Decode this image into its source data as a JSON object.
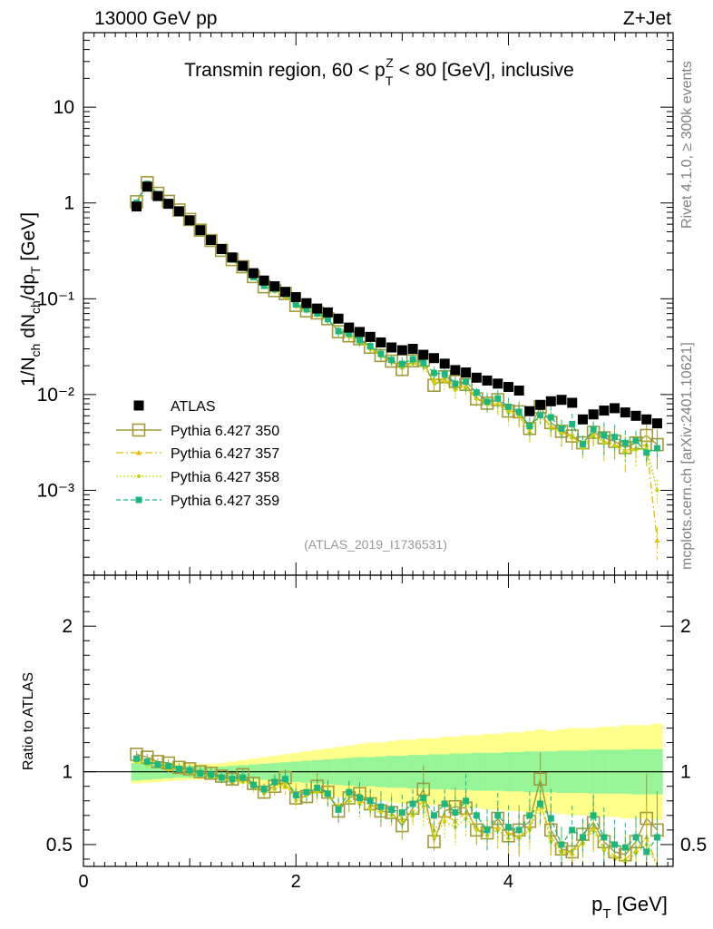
{
  "header": {
    "energy_label": "13000 GeV pp",
    "process_label": "Z+Jet"
  },
  "side": {
    "rivet_label": "Rivet 4.1.0, ≥ 300k events",
    "mcplots_label": "mcplots.cern.ch [arXiv:2401.10621]"
  },
  "chart_data": {
    "type": "scatter",
    "title": "Transmin region, 60 < pTZ < 80 [GeV], inclusive",
    "analysis_tag": "(ATLAS_2019_I1736531)",
    "xlabel": "pT [GeV]",
    "ylabel_main": "1/Nch dNch/dpT [GeV]",
    "ylabel_ratio": "Ratio to ATLAS",
    "xlim": [
      0,
      5.55
    ],
    "ylim_main": [
      0.00013,
      60
    ],
    "ylim_ratio": [
      0.35,
      2.35
    ],
    "yscale_main": "log",
    "x_ticks": [
      0,
      2,
      4
    ],
    "y_ticks_main": [
      {
        "value": 10,
        "label": "10"
      },
      {
        "value": 1,
        "label": "1"
      },
      {
        "value": 0.1,
        "label": "10⁻¹"
      },
      {
        "value": 0.01,
        "label": "10⁻²"
      },
      {
        "value": 0.001,
        "label": "10⁻³"
      }
    ],
    "y_ticks_ratio": [
      0.5,
      1,
      2
    ],
    "legend_position": "bottom-left",
    "x": [
      0.5,
      0.6,
      0.7,
      0.8,
      0.9,
      1.0,
      1.1,
      1.2,
      1.3,
      1.4,
      1.5,
      1.6,
      1.7,
      1.8,
      1.9,
      2.0,
      2.1,
      2.2,
      2.3,
      2.4,
      2.5,
      2.6,
      2.7,
      2.8,
      2.9,
      3.0,
      3.1,
      3.2,
      3.3,
      3.4,
      3.5,
      3.6,
      3.7,
      3.8,
      3.9,
      4.0,
      4.1,
      4.2,
      4.3,
      4.4,
      4.5,
      4.6,
      4.7,
      4.8,
      4.9,
      5.0,
      5.1,
      5.2,
      5.3,
      5.4
    ],
    "band_inner_halfwidth": [
      0.06,
      0.055,
      0.05,
      0.045,
      0.04,
      0.04,
      0.035,
      0.035,
      0.035,
      0.04,
      0.045,
      0.05,
      0.055,
      0.06,
      0.065,
      0.07,
      0.075,
      0.08,
      0.085,
      0.09,
      0.095,
      0.1,
      0.1,
      0.105,
      0.11,
      0.11,
      0.115,
      0.115,
      0.12,
      0.12,
      0.125,
      0.125,
      0.13,
      0.13,
      0.13,
      0.135,
      0.135,
      0.14,
      0.14,
      0.14,
      0.145,
      0.145,
      0.145,
      0.15,
      0.15,
      0.15,
      0.15,
      0.155,
      0.155,
      0.155
    ],
    "band_outer_halfwidth": [
      0.08,
      0.075,
      0.07,
      0.065,
      0.06,
      0.055,
      0.055,
      0.055,
      0.06,
      0.07,
      0.08,
      0.09,
      0.1,
      0.11,
      0.12,
      0.13,
      0.14,
      0.15,
      0.16,
      0.17,
      0.18,
      0.19,
      0.2,
      0.2,
      0.21,
      0.22,
      0.22,
      0.23,
      0.23,
      0.24,
      0.24,
      0.25,
      0.25,
      0.26,
      0.26,
      0.27,
      0.27,
      0.28,
      0.29,
      0.28,
      0.29,
      0.3,
      0.3,
      0.3,
      0.31,
      0.31,
      0.32,
      0.32,
      0.32,
      0.33
    ],
    "series": [
      {
        "name": "ATLAS",
        "color": "#000000",
        "style": "data",
        "values": [
          0.92,
          1.48,
          1.18,
          0.98,
          0.82,
          0.66,
          0.52,
          0.41,
          0.33,
          0.27,
          0.22,
          0.185,
          0.155,
          0.135,
          0.118,
          0.104,
          0.09,
          0.079,
          0.072,
          0.062,
          0.05,
          0.045,
          0.04,
          0.035,
          0.031,
          0.029,
          0.03,
          0.026,
          0.024,
          0.021,
          0.018,
          0.017,
          0.015,
          0.014,
          0.013,
          0.012,
          0.011,
          0.0067,
          0.0078,
          0.0085,
          0.0088,
          0.0082,
          0.0055,
          0.0062,
          0.0068,
          0.0072,
          0.0065,
          0.006,
          0.0055,
          0.005
        ]
      },
      {
        "name": "Pythia 6.427 350",
        "color": "#a29a3a",
        "style": "solid-open-square",
        "ratios": [
          1.12,
          1.1,
          1.07,
          1.06,
          1.03,
          1.02,
          1.0,
          0.99,
          0.97,
          0.95,
          0.98,
          0.92,
          0.86,
          0.9,
          0.96,
          0.82,
          0.83,
          0.9,
          0.86,
          0.73,
          0.82,
          0.85,
          0.78,
          0.73,
          0.72,
          0.63,
          0.75,
          0.88,
          0.52,
          0.73,
          0.76,
          0.75,
          0.6,
          0.58,
          0.68,
          0.56,
          0.6,
          0.66,
          0.95,
          0.6,
          0.47,
          0.45,
          0.57,
          0.65,
          0.52,
          0.45,
          0.43,
          0.52,
          0.68,
          0.6
        ]
      },
      {
        "name": "Pythia 6.427 357",
        "color": "#e0c000",
        "style": "dashdot-tri",
        "ratios": [
          1.08,
          1.08,
          1.06,
          1.02,
          1.02,
          1.0,
          0.99,
          0.97,
          0.96,
          0.93,
          0.95,
          0.9,
          0.88,
          0.92,
          0.9,
          0.85,
          0.86,
          0.88,
          0.84,
          0.76,
          0.85,
          0.8,
          0.77,
          0.75,
          0.74,
          0.68,
          0.72,
          0.8,
          0.6,
          0.7,
          0.66,
          0.72,
          0.62,
          0.6,
          0.62,
          0.58,
          0.55,
          0.62,
          0.8,
          0.55,
          0.46,
          0.44,
          0.52,
          0.62,
          0.48,
          0.42,
          0.4,
          0.46,
          0.55,
          0.06
        ]
      },
      {
        "name": "Pythia 6.427 358",
        "color": "#c8d400",
        "style": "dotted-dot",
        "ratios": [
          1.07,
          1.05,
          1.04,
          1.03,
          1.01,
          0.99,
          0.98,
          0.97,
          0.95,
          0.94,
          0.93,
          0.9,
          0.85,
          0.88,
          0.92,
          0.8,
          0.84,
          0.86,
          0.83,
          0.76,
          0.8,
          0.78,
          0.74,
          0.72,
          0.7,
          0.66,
          0.7,
          0.76,
          0.55,
          0.66,
          0.62,
          0.68,
          0.6,
          0.56,
          0.6,
          0.54,
          0.55,
          0.6,
          0.78,
          0.52,
          0.44,
          0.46,
          0.5,
          0.6,
          0.46,
          0.4,
          0.38,
          0.44,
          0.5,
          0.2
        ]
      },
      {
        "name": "Pythia 6.427 359",
        "color": "#1ab77e",
        "style": "dashed-filled-square",
        "ratios": [
          1.09,
          1.07,
          1.05,
          1.04,
          1.02,
          1.01,
          0.99,
          0.98,
          0.96,
          0.95,
          0.96,
          0.91,
          0.88,
          0.93,
          0.95,
          0.84,
          0.86,
          0.89,
          0.85,
          0.74,
          0.86,
          0.82,
          0.8,
          0.76,
          0.74,
          0.72,
          0.78,
          0.82,
          0.7,
          0.78,
          0.72,
          0.8,
          0.7,
          0.6,
          0.7,
          0.62,
          0.6,
          0.7,
          0.78,
          0.68,
          0.5,
          0.6,
          0.55,
          0.7,
          0.55,
          0.5,
          0.48,
          0.55,
          0.45,
          0.55
        ]
      }
    ]
  }
}
